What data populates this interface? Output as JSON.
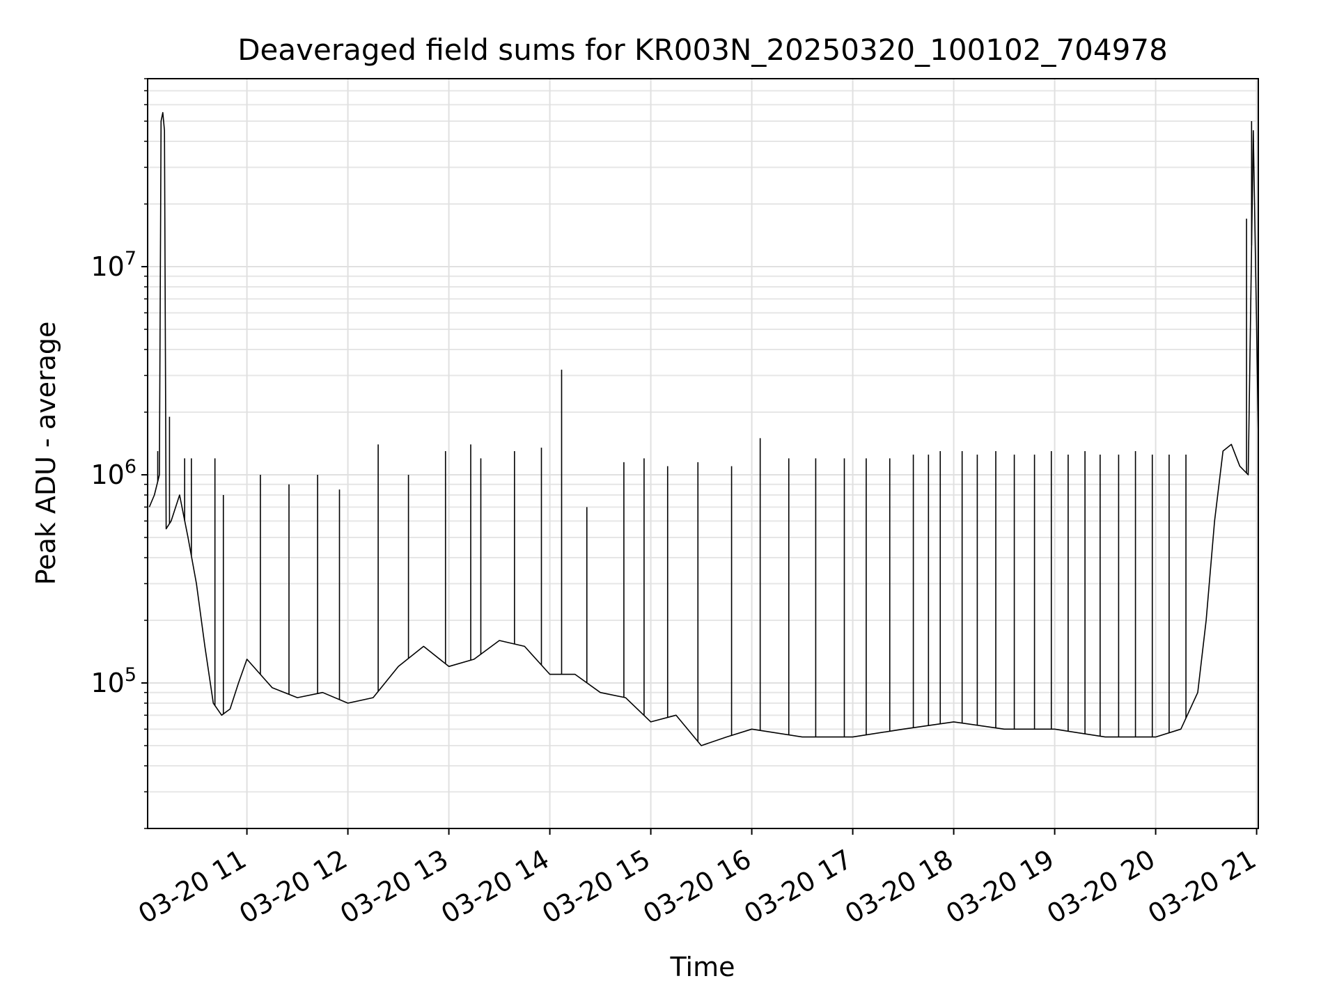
{
  "chart_data": {
    "type": "line",
    "title": "Deaveraged field sums for KR003N_20250320_100102_704978",
    "xlabel": "Time",
    "ylabel": "Peak ADU - average",
    "yscale": "log",
    "grid": true,
    "grid_minor": true,
    "legend": "none",
    "line_color": "#000000",
    "xlim": [
      "2025-03-20 10:01",
      "2025-03-20 21:01"
    ],
    "ylim": [
      20000,
      80000000
    ],
    "x_ticks": [
      {
        "value": "2025-03-20 11:00",
        "label": "03-20 11"
      },
      {
        "value": "2025-03-20 12:00",
        "label": "03-20 12"
      },
      {
        "value": "2025-03-20 13:00",
        "label": "03-20 13"
      },
      {
        "value": "2025-03-20 14:00",
        "label": "03-20 14"
      },
      {
        "value": "2025-03-20 15:00",
        "label": "03-20 15"
      },
      {
        "value": "2025-03-20 16:00",
        "label": "03-20 16"
      },
      {
        "value": "2025-03-20 17:00",
        "label": "03-20 17"
      },
      {
        "value": "2025-03-20 18:00",
        "label": "03-20 18"
      },
      {
        "value": "2025-03-20 19:00",
        "label": "03-20 19"
      },
      {
        "value": "2025-03-20 20:00",
        "label": "03-20 20"
      },
      {
        "value": "2025-03-20 21:00",
        "label": "03-20 21"
      }
    ],
    "y_ticks": [
      {
        "value": 100000,
        "base": "10",
        "exp": "5"
      },
      {
        "value": 1000000,
        "base": "10",
        "exp": "6"
      },
      {
        "value": 10000000,
        "base": "10",
        "exp": "7"
      }
    ],
    "series": [
      {
        "x": [
          "2025-03-20 10:02",
          "2025-03-20 10:05",
          "2025-03-20 10:08",
          "2025-03-20 10:09",
          "2025-03-20 10:10",
          "2025-03-20 10:11",
          "2025-03-20 10:12",
          "2025-03-20 10:15",
          "2025-03-20 10:20",
          "2025-03-20 10:25",
          "2025-03-20 10:30",
          "2025-03-20 10:35",
          "2025-03-20 10:40",
          "2025-03-20 10:45",
          "2025-03-20 10:50",
          "2025-03-20 10:55",
          "2025-03-20 11:00",
          "2025-03-20 11:15",
          "2025-03-20 11:30",
          "2025-03-20 11:45",
          "2025-03-20 12:00",
          "2025-03-20 12:15",
          "2025-03-20 12:30",
          "2025-03-20 12:45",
          "2025-03-20 13:00",
          "2025-03-20 13:15",
          "2025-03-20 13:30",
          "2025-03-20 13:45",
          "2025-03-20 14:00",
          "2025-03-20 14:15",
          "2025-03-20 14:30",
          "2025-03-20 14:45",
          "2025-03-20 15:00",
          "2025-03-20 15:15",
          "2025-03-20 15:30",
          "2025-03-20 15:45",
          "2025-03-20 16:00",
          "2025-03-20 16:30",
          "2025-03-20 17:00",
          "2025-03-20 17:30",
          "2025-03-20 18:00",
          "2025-03-20 18:30",
          "2025-03-20 19:00",
          "2025-03-20 19:30",
          "2025-03-20 20:00",
          "2025-03-20 20:15",
          "2025-03-20 20:25",
          "2025-03-20 20:30",
          "2025-03-20 20:35",
          "2025-03-20 20:40",
          "2025-03-20 20:45",
          "2025-03-20 20:50",
          "2025-03-20 20:55",
          "2025-03-20 20:58",
          "2025-03-20 21:00",
          "2025-03-20 21:01"
        ],
        "y": [
          700000,
          800000,
          1000000,
          50000000,
          55000000,
          45000000,
          550000,
          600000,
          800000,
          500000,
          300000,
          150000,
          80000,
          70000,
          75000,
          100000,
          130000,
          95000,
          85000,
          90000,
          80000,
          85000,
          120000,
          150000,
          120000,
          130000,
          160000,
          150000,
          110000,
          110000,
          90000,
          85000,
          65000,
          70000,
          50000,
          55000,
          60000,
          55000,
          55000,
          60000,
          65000,
          60000,
          60000,
          55000,
          55000,
          60000,
          90000,
          200000,
          600000,
          1300000,
          1400000,
          1100000,
          1000000,
          45000000,
          5000000,
          1500000
        ],
        "spikes": {
          "x": [
            "2025-03-20 10:07",
            "2025-03-20 10:14",
            "2025-03-20 10:23",
            "2025-03-20 10:27",
            "2025-03-20 10:41",
            "2025-03-20 10:46",
            "2025-03-20 11:08",
            "2025-03-20 11:25",
            "2025-03-20 11:42",
            "2025-03-20 11:55",
            "2025-03-20 12:18",
            "2025-03-20 12:36",
            "2025-03-20 12:58",
            "2025-03-20 13:13",
            "2025-03-20 13:19",
            "2025-03-20 13:39",
            "2025-03-20 13:55",
            "2025-03-20 14:07",
            "2025-03-20 14:22",
            "2025-03-20 14:44",
            "2025-03-20 14:56",
            "2025-03-20 15:10",
            "2025-03-20 15:28",
            "2025-03-20 15:48",
            "2025-03-20 16:05",
            "2025-03-20 16:22",
            "2025-03-20 16:38",
            "2025-03-20 16:55",
            "2025-03-20 17:08",
            "2025-03-20 17:22",
            "2025-03-20 17:36",
            "2025-03-20 17:45",
            "2025-03-20 17:52",
            "2025-03-20 18:05",
            "2025-03-20 18:14",
            "2025-03-20 18:25",
            "2025-03-20 18:36",
            "2025-03-20 18:48",
            "2025-03-20 18:58",
            "2025-03-20 19:08",
            "2025-03-20 19:18",
            "2025-03-20 19:27",
            "2025-03-20 19:38",
            "2025-03-20 19:48",
            "2025-03-20 19:58",
            "2025-03-20 20:08",
            "2025-03-20 20:18",
            "2025-03-20 20:54",
            "2025-03-20 20:57"
          ],
          "y": [
            1300000,
            1900000,
            1200000,
            1200000,
            1200000,
            800000,
            1000000,
            900000,
            1000000,
            850000,
            1400000,
            1000000,
            1300000,
            1400000,
            1200000,
            1300000,
            1350000,
            3200000,
            700000,
            1150000,
            1200000,
            1100000,
            1150000,
            1100000,
            1500000,
            1200000,
            1200000,
            1200000,
            1200000,
            1200000,
            1250000,
            1250000,
            1300000,
            1300000,
            1250000,
            1300000,
            1250000,
            1250000,
            1300000,
            1250000,
            1300000,
            1250000,
            1250000,
            1300000,
            1250000,
            1250000,
            1250000,
            17000000,
            50000000
          ]
        }
      }
    ]
  }
}
